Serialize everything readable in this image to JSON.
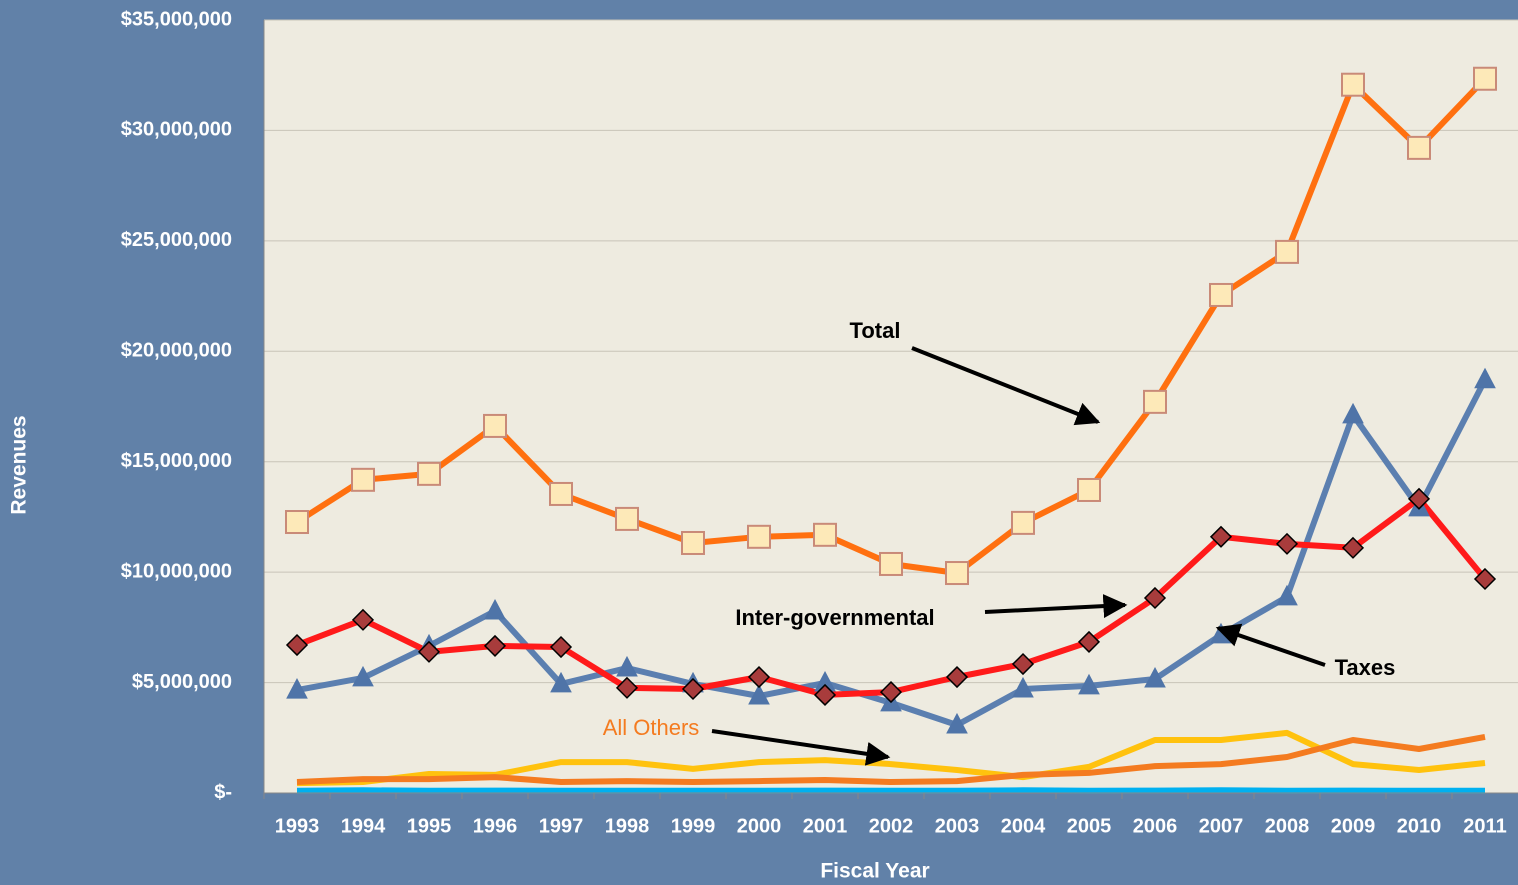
{
  "chart_data": {
    "type": "line",
    "xlabel": "Fiscal Year",
    "ylabel": "Revenues",
    "categories": [
      "1993",
      "1994",
      "1995",
      "1996",
      "1997",
      "1998",
      "1999",
      "2000",
      "2001",
      "2002",
      "2003",
      "2004",
      "2005",
      "2006",
      "2007",
      "2008",
      "2009",
      "2010",
      "2011"
    ],
    "series": [
      {
        "color": "#ffc20e",
        "values": [
          450000,
          500000,
          860000,
          820000,
          1400000,
          1400000,
          1090000,
          1400000,
          1490000,
          1310000,
          1040000,
          720000,
          1180000,
          2400000,
          2400000,
          2720000,
          1310000,
          1040000,
          1360000
        ]
      },
      {
        "color": "#f47b20",
        "values": [
          500000,
          630000,
          630000,
          720000,
          500000,
          540000,
          500000,
          540000,
          590000,
          500000,
          540000,
          820000,
          910000,
          1220000,
          1310000,
          1630000,
          2400000,
          1990000,
          2540000
        ]
      },
      {
        "color": "#00b0f0",
        "values": [
          100000,
          120000,
          100000,
          110000,
          100000,
          100000,
          100000,
          100000,
          110000,
          100000,
          100000,
          120000,
          100000,
          110000,
          120000,
          100000,
          110000,
          100000,
          100000
        ]
      },
      {
        "color": "#5b7fb0",
        "marker": "triangle",
        "values": [
          4660000,
          5210000,
          6660000,
          8240000,
          4940000,
          5660000,
          4940000,
          4390000,
          4980000,
          4080000,
          3080000,
          4710000,
          4850000,
          5160000,
          7160000,
          8880000,
          17120000,
          12910000,
          18710000
        ]
      },
      {
        "color": "#ff1a1a",
        "marker": "diamond",
        "values": [
          6700000,
          7840000,
          6390000,
          6660000,
          6610000,
          4760000,
          4710000,
          5250000,
          4440000,
          4570000,
          5250000,
          5840000,
          6840000,
          8830000,
          11600000,
          11280000,
          11100000,
          13320000,
          9690000
        ]
      },
      {
        "color": "#ff7010",
        "marker": "square",
        "values": [
          12270000,
          14180000,
          14450000,
          16620000,
          13540000,
          12410000,
          11320000,
          11600000,
          11690000,
          10370000,
          9960000,
          12230000,
          13720000,
          17710000,
          22550000,
          24500000,
          32070000,
          29210000,
          32340000
        ]
      }
    ],
    "annotations": [
      {
        "text": "Total"
      },
      {
        "text": "Inter-governmental"
      },
      {
        "text": "Taxes"
      },
      {
        "text": "All Others",
        "color": "#f47b20"
      }
    ],
    "ylim": [
      0,
      35000000
    ],
    "yticks": [
      {
        "value": 0,
        "label": "$-"
      },
      {
        "value": 5000000,
        "label": "$5,000,000"
      },
      {
        "value": 10000000,
        "label": "$10,000,000"
      },
      {
        "value": 15000000,
        "label": "$15,000,000"
      },
      {
        "value": 20000000,
        "label": "$20,000,000"
      },
      {
        "value": 25000000,
        "label": "$25,000,000"
      },
      {
        "value": 30000000,
        "label": "$30,000,000"
      },
      {
        "value": 35000000,
        "label": "$35,000,000"
      }
    ],
    "grid": true,
    "plot_background": "#eeebe0"
  }
}
